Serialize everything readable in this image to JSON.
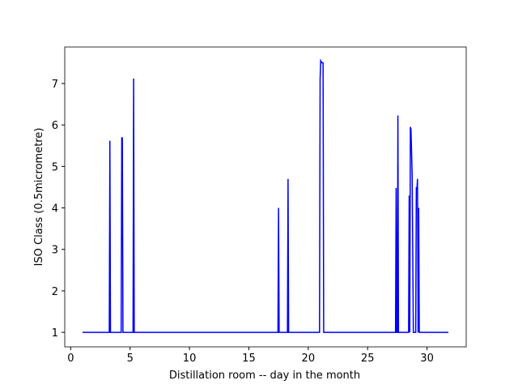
{
  "chart_data": {
    "type": "line",
    "xlabel": "Distillation room -- day in the month",
    "ylabel": "ISO Class (0.5micrometre)",
    "x": [
      1.0,
      3.25,
      3.3,
      3.35,
      4.25,
      4.3,
      4.35,
      4.4,
      5.25,
      5.3,
      5.35,
      17.45,
      17.5,
      17.55,
      18.25,
      18.3,
      18.35,
      20.95,
      21.0,
      21.05,
      21.15,
      21.25,
      21.3,
      27.35,
      27.4,
      27.45,
      27.5,
      27.55,
      27.6,
      28.45,
      28.5,
      28.55,
      28.6,
      28.65,
      28.75,
      28.85,
      29.05,
      29.1,
      29.15,
      29.2,
      29.25,
      29.3,
      29.35,
      31.8
    ],
    "series": [
      {
        "color": "#0000ff",
        "values": [
          1,
          1,
          5.62,
          1,
          1,
          5.69,
          5.69,
          1,
          1,
          7.12,
          1,
          1,
          4.0,
          1,
          1,
          4.7,
          1,
          1,
          7.1,
          7.55,
          7.5,
          7.5,
          1,
          1,
          4.48,
          1,
          1,
          6.23,
          1,
          1,
          4.3,
          1,
          5.95,
          5.9,
          4.8,
          1,
          1,
          4.5,
          4.45,
          4.7,
          1,
          4.0,
          1,
          1
        ]
      }
    ],
    "xlim": [
      -0.5,
      33.3
    ],
    "ylim": [
      0.65,
      7.88
    ],
    "xticks": [
      0,
      5,
      10,
      15,
      20,
      25,
      30
    ],
    "yticks": [
      1,
      2,
      3,
      4,
      5,
      6,
      7
    ]
  }
}
